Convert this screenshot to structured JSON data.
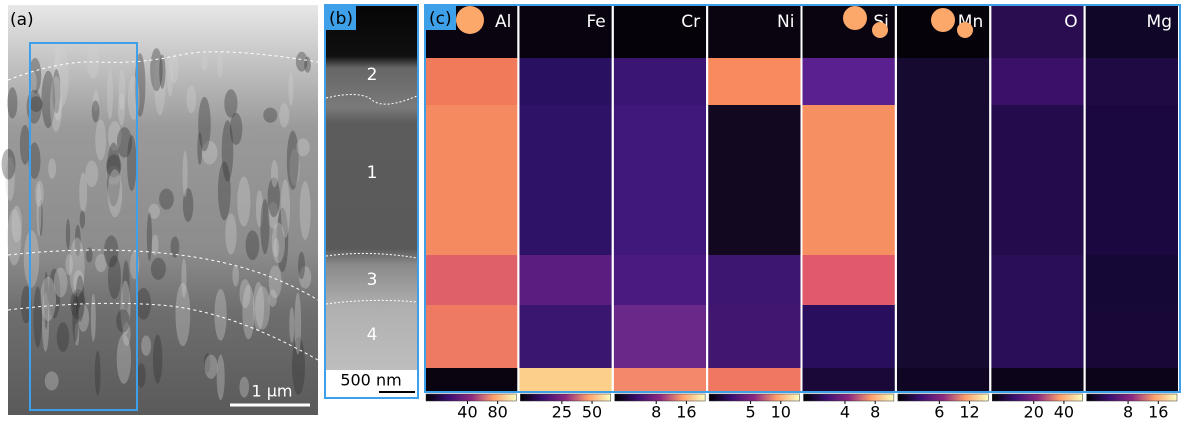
{
  "panels": {
    "a": {
      "label": "(a)",
      "scale_bar": "1 µm"
    },
    "b": {
      "label": "(b)",
      "scale_bar": "500 nm",
      "regions": [
        "2",
        "1",
        "3",
        "4"
      ]
    },
    "c": {
      "label": "(c)",
      "maps": [
        {
          "element": "Al",
          "ticks": [
            40,
            80
          ]
        },
        {
          "element": "Fe",
          "ticks": [
            25,
            50
          ]
        },
        {
          "element": "Cr",
          "ticks": [
            8,
            16
          ]
        },
        {
          "element": "Ni",
          "ticks": [
            5,
            10
          ]
        },
        {
          "element": "Si",
          "ticks": [
            4,
            8
          ]
        },
        {
          "element": "Mn",
          "ticks": [
            6,
            12
          ]
        },
        {
          "element": "O",
          "ticks": [
            20,
            40
          ]
        },
        {
          "element": "Mg",
          "ticks": [
            8,
            16
          ]
        }
      ]
    }
  }
}
